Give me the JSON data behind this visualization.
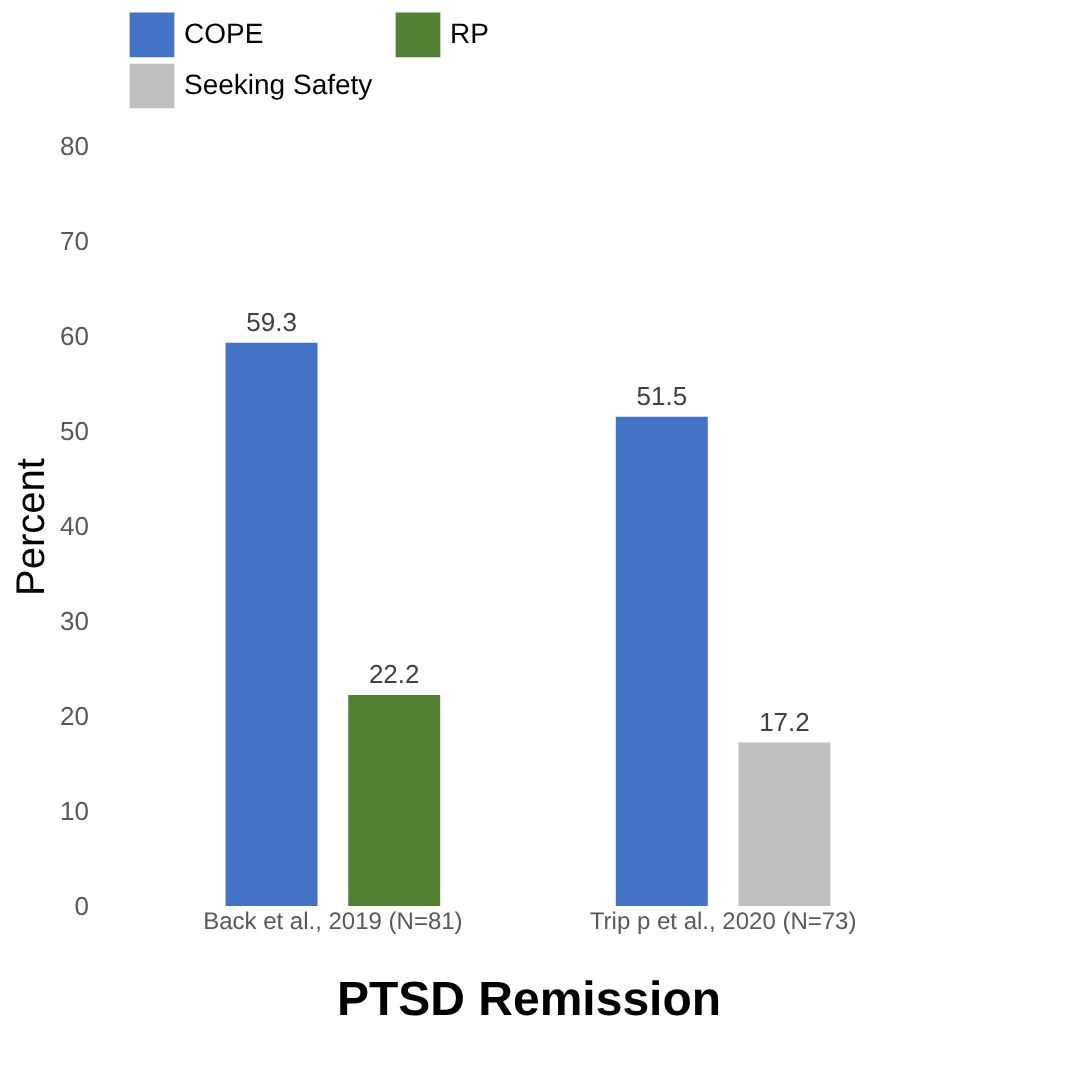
{
  "chart_data": {
    "type": "bar",
    "xlabel": "PTSD Remission",
    "ylabel": "Percent",
    "categories": [
      "Back et al., 2019 (N=81)",
      "Trip p et al., 2020 (N=73)"
    ],
    "series": [
      {
        "name": "COPE",
        "color": "#4472c4",
        "values": [
          59.3,
          51.5
        ]
      },
      {
        "name": "RP",
        "color": "#548235",
        "values": [
          22.2,
          null
        ]
      },
      {
        "name": "Seeking Safety",
        "color": "#bfbfbf",
        "values": [
          null,
          17.2
        ]
      }
    ],
    "ylim": [
      0,
      80
    ],
    "yticks": [
      0,
      10,
      20,
      30,
      40,
      50,
      60,
      70,
      80
    ],
    "data_labels": true,
    "grid": false,
    "legend": "top"
  }
}
